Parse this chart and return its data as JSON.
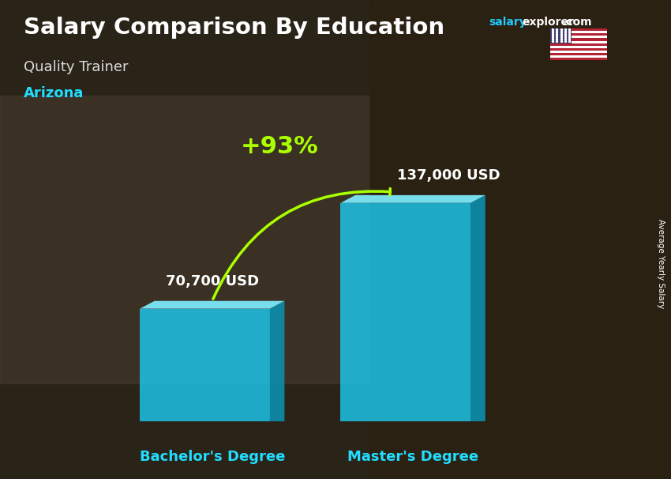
{
  "title": "Salary Comparison By Education",
  "subtitle": "Quality Trainer",
  "location": "Arizona",
  "ylabel": "Average Yearly Salary",
  "categories": [
    "Bachelor's Degree",
    "Master's Degree"
  ],
  "values": [
    70700,
    137000
  ],
  "value_labels": [
    "70,700 USD",
    "137,000 USD"
  ],
  "bar_color_main": "#1CC8EE",
  "bar_color_light": "#7EEEFF",
  "bar_color_dark": "#0899BB",
  "bar_alpha": 0.82,
  "pct_label": "+93%",
  "pct_color": "#AAFF00",
  "arrow_color": "#AAFF00",
  "title_color": "#FFFFFF",
  "subtitle_color": "#DDDDDD",
  "location_color": "#22DDFF",
  "xlabel_color": "#22DDFF",
  "value_label_color": "#FFFFFF",
  "salary_color": "#22CCFF",
  "explorer_color": "#FFFFFF",
  "com_color": "#FFFFFF",
  "bg_color": "#4a3e2e"
}
